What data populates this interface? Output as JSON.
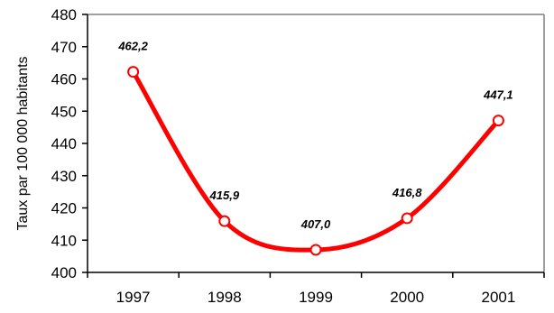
{
  "chart_data": {
    "type": "line",
    "title": "",
    "xlabel": "",
    "ylabel": "Taux par 100 000 habitants",
    "ylim": [
      400,
      480
    ],
    "yticks": [
      400,
      410,
      420,
      430,
      440,
      450,
      460,
      470,
      480
    ],
    "categories": [
      "1997",
      "1998",
      "1999",
      "2000",
      "2001"
    ],
    "series": [
      {
        "values": [
          462.2,
          415.9,
          407.0,
          416.8,
          447.1
        ],
        "labels": [
          "462,2",
          "415,9",
          "407,0",
          "416,8",
          "447,1"
        ],
        "color": "#ff0000"
      }
    ],
    "grid": false,
    "smooth": true
  }
}
